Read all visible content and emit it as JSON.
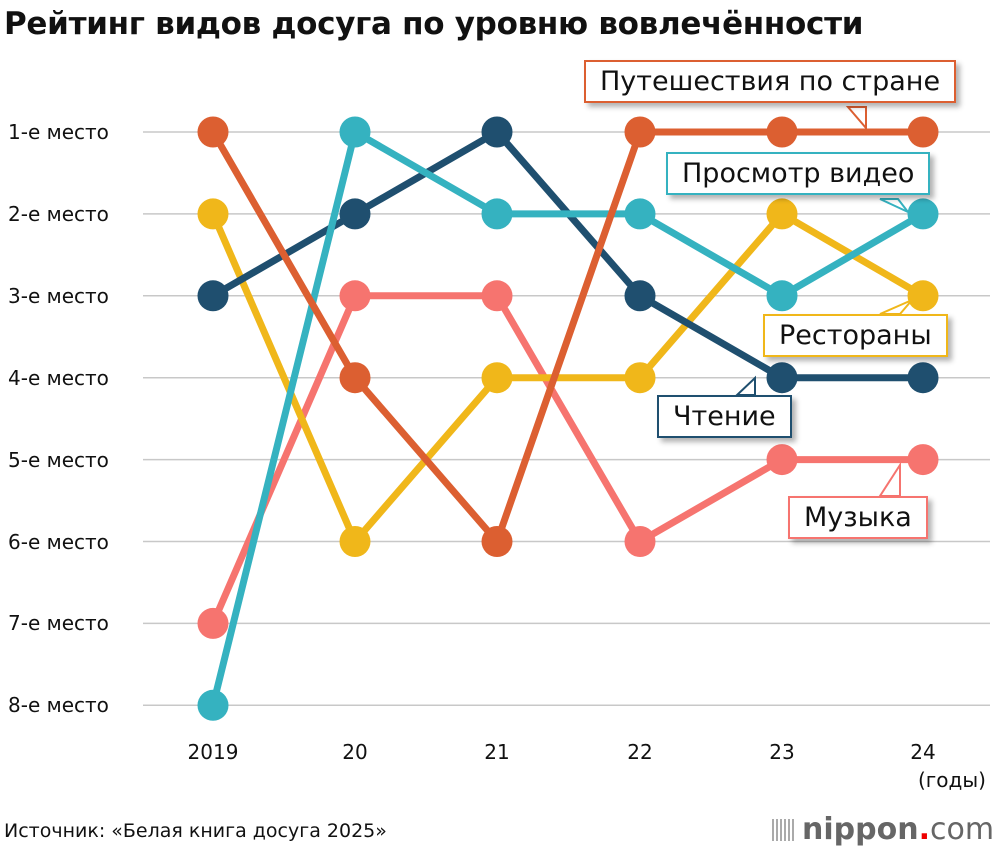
{
  "chart_data": {
    "type": "line",
    "title": "Рейтинг видов досуга по уровню вовлечённости",
    "categories": [
      "2019",
      "20",
      "21",
      "22",
      "23",
      "24"
    ],
    "xunit": "(годы)",
    "y_ticks": [
      "1-е место",
      "2-е место",
      "3-е место",
      "4-е место",
      "5-е место",
      "6-е место",
      "7-е место",
      "8-е место"
    ],
    "ylim": [
      1,
      8
    ],
    "y_inverted": true,
    "grid": true,
    "series": [
      {
        "name": "Музыка",
        "color": "#f6746f",
        "values": [
          7,
          3,
          3,
          6,
          5,
          5
        ]
      },
      {
        "name": "Рестораны",
        "color": "#f0b71a",
        "values": [
          2,
          6,
          4,
          4,
          2,
          3
        ]
      },
      {
        "name": "Чтение",
        "color": "#1f4f6f",
        "values": [
          3,
          2,
          1,
          3,
          4,
          4
        ]
      },
      {
        "name": "Просмотр видео",
        "color": "#35b2c0",
        "values": [
          8,
          1,
          2,
          2,
          3,
          2
        ]
      },
      {
        "name": "Путешествия по стране",
        "color": "#dc5f31",
        "values": [
          1,
          4,
          6,
          1,
          1,
          1
        ]
      }
    ]
  },
  "source": "Источник: «Белая книга досуга 2025»",
  "logo": {
    "brand": "nippon",
    "dot": ".",
    "suffix": "com"
  }
}
